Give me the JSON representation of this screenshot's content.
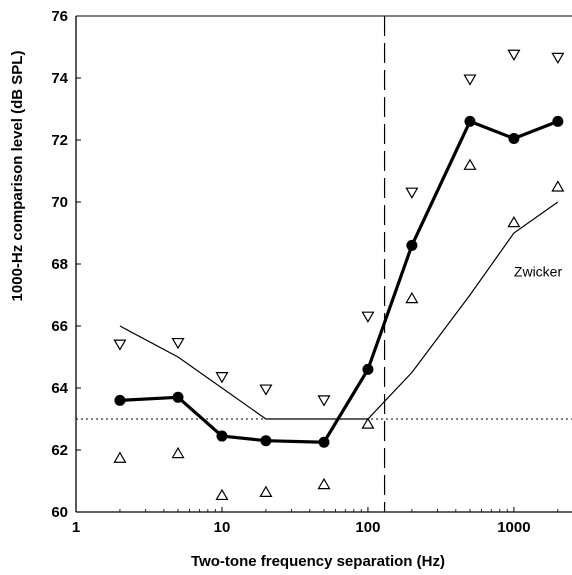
{
  "chart_data": {
    "type": "line",
    "xscale": "log",
    "xlabel": "Two-tone frequency separation (Hz)",
    "ylabel": "1000-Hz comparison level (dB SPL)",
    "xlim": [
      1,
      2500
    ],
    "ylim": [
      60,
      76
    ],
    "xticks": [
      1,
      10,
      100,
      1000
    ],
    "xtick_labels": [
      "1",
      "10",
      "100",
      "1000"
    ],
    "yticks": [
      60,
      62,
      64,
      66,
      68,
      70,
      72,
      74,
      76
    ],
    "ytick_labels": [
      "60",
      "62",
      "64",
      "66",
      "68",
      "70",
      "72",
      "74",
      "76"
    ],
    "grid": false,
    "legend": "none",
    "colors": {
      "ink": "#000000",
      "background": "#ffffff"
    },
    "series": [
      {
        "role": "mean",
        "style": "thick-line-filled-circles",
        "x": [
          2,
          5,
          10,
          20,
          50,
          100,
          200,
          500,
          1000,
          2000
        ],
        "y": [
          63.6,
          63.7,
          62.45,
          62.3,
          62.25,
          64.6,
          68.6,
          72.6,
          72.05,
          72.6
        ]
      },
      {
        "role": "upper",
        "style": "down-triangles",
        "x": [
          2,
          5,
          10,
          20,
          50,
          100,
          200,
          500,
          1000,
          2000
        ],
        "y": [
          65.4,
          65.45,
          64.35,
          63.95,
          63.6,
          66.3,
          70.3,
          73.95,
          74.75,
          74.65
        ]
      },
      {
        "role": "lower",
        "style": "up-triangles",
        "x": [
          2,
          5,
          10,
          20,
          50,
          100,
          200,
          500,
          1000,
          2000
        ],
        "y": [
          61.75,
          61.9,
          60.55,
          60.65,
          60.9,
          62.85,
          66.9,
          71.2,
          69.35,
          70.5
        ]
      },
      {
        "role": "model",
        "name": "Zwicker",
        "style": "thin-line",
        "x": [
          2,
          5,
          10,
          20,
          50,
          100,
          200,
          500,
          1000,
          2000
        ],
        "y": [
          66.0,
          65.0,
          64.0,
          63.0,
          63.0,
          63.0,
          64.5,
          67.0,
          69.0,
          70.0
        ]
      }
    ],
    "reference_lines": [
      {
        "orientation": "horizontal",
        "style": "dotted",
        "value": 63
      },
      {
        "orientation": "vertical",
        "style": "dashed",
        "value": 130
      }
    ],
    "annotations": [
      {
        "text": "Zwicker",
        "x": 1000,
        "y": 67.6
      }
    ]
  }
}
